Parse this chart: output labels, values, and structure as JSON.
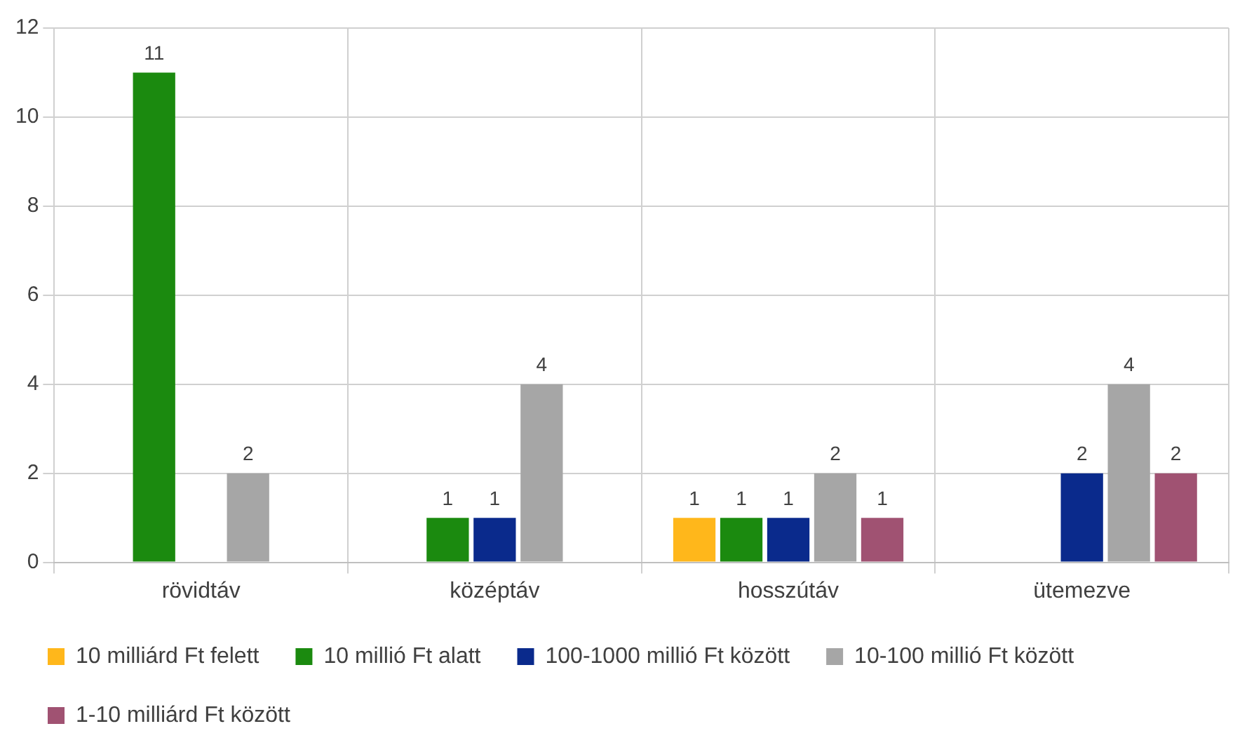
{
  "chart_data": {
    "type": "bar",
    "categories": [
      "rövidtáv",
      "középtáv",
      "hosszútáv",
      "ütemezve"
    ],
    "series": [
      {
        "name": "10 milliárd Ft felett",
        "color": "#ffb71b",
        "values": [
          null,
          null,
          1,
          null
        ]
      },
      {
        "name": "10 millió Ft alatt",
        "color": "#1b8a0f",
        "values": [
          11,
          1,
          1,
          null
        ]
      },
      {
        "name": "100-1000 millió Ft között",
        "color": "#0a2a8c",
        "values": [
          null,
          1,
          1,
          2
        ]
      },
      {
        "name": "10-100 millió Ft között",
        "color": "#a6a6a6",
        "values": [
          2,
          4,
          2,
          4
        ]
      },
      {
        "name": "1-10 milliárd Ft között",
        "color": "#a05272",
        "values": [
          null,
          null,
          1,
          2
        ]
      }
    ],
    "ylim": [
      0,
      12
    ],
    "yticks": [
      0,
      2,
      4,
      6,
      8,
      10,
      12
    ],
    "grid": true,
    "legend": "bottom",
    "data_labels": true
  }
}
